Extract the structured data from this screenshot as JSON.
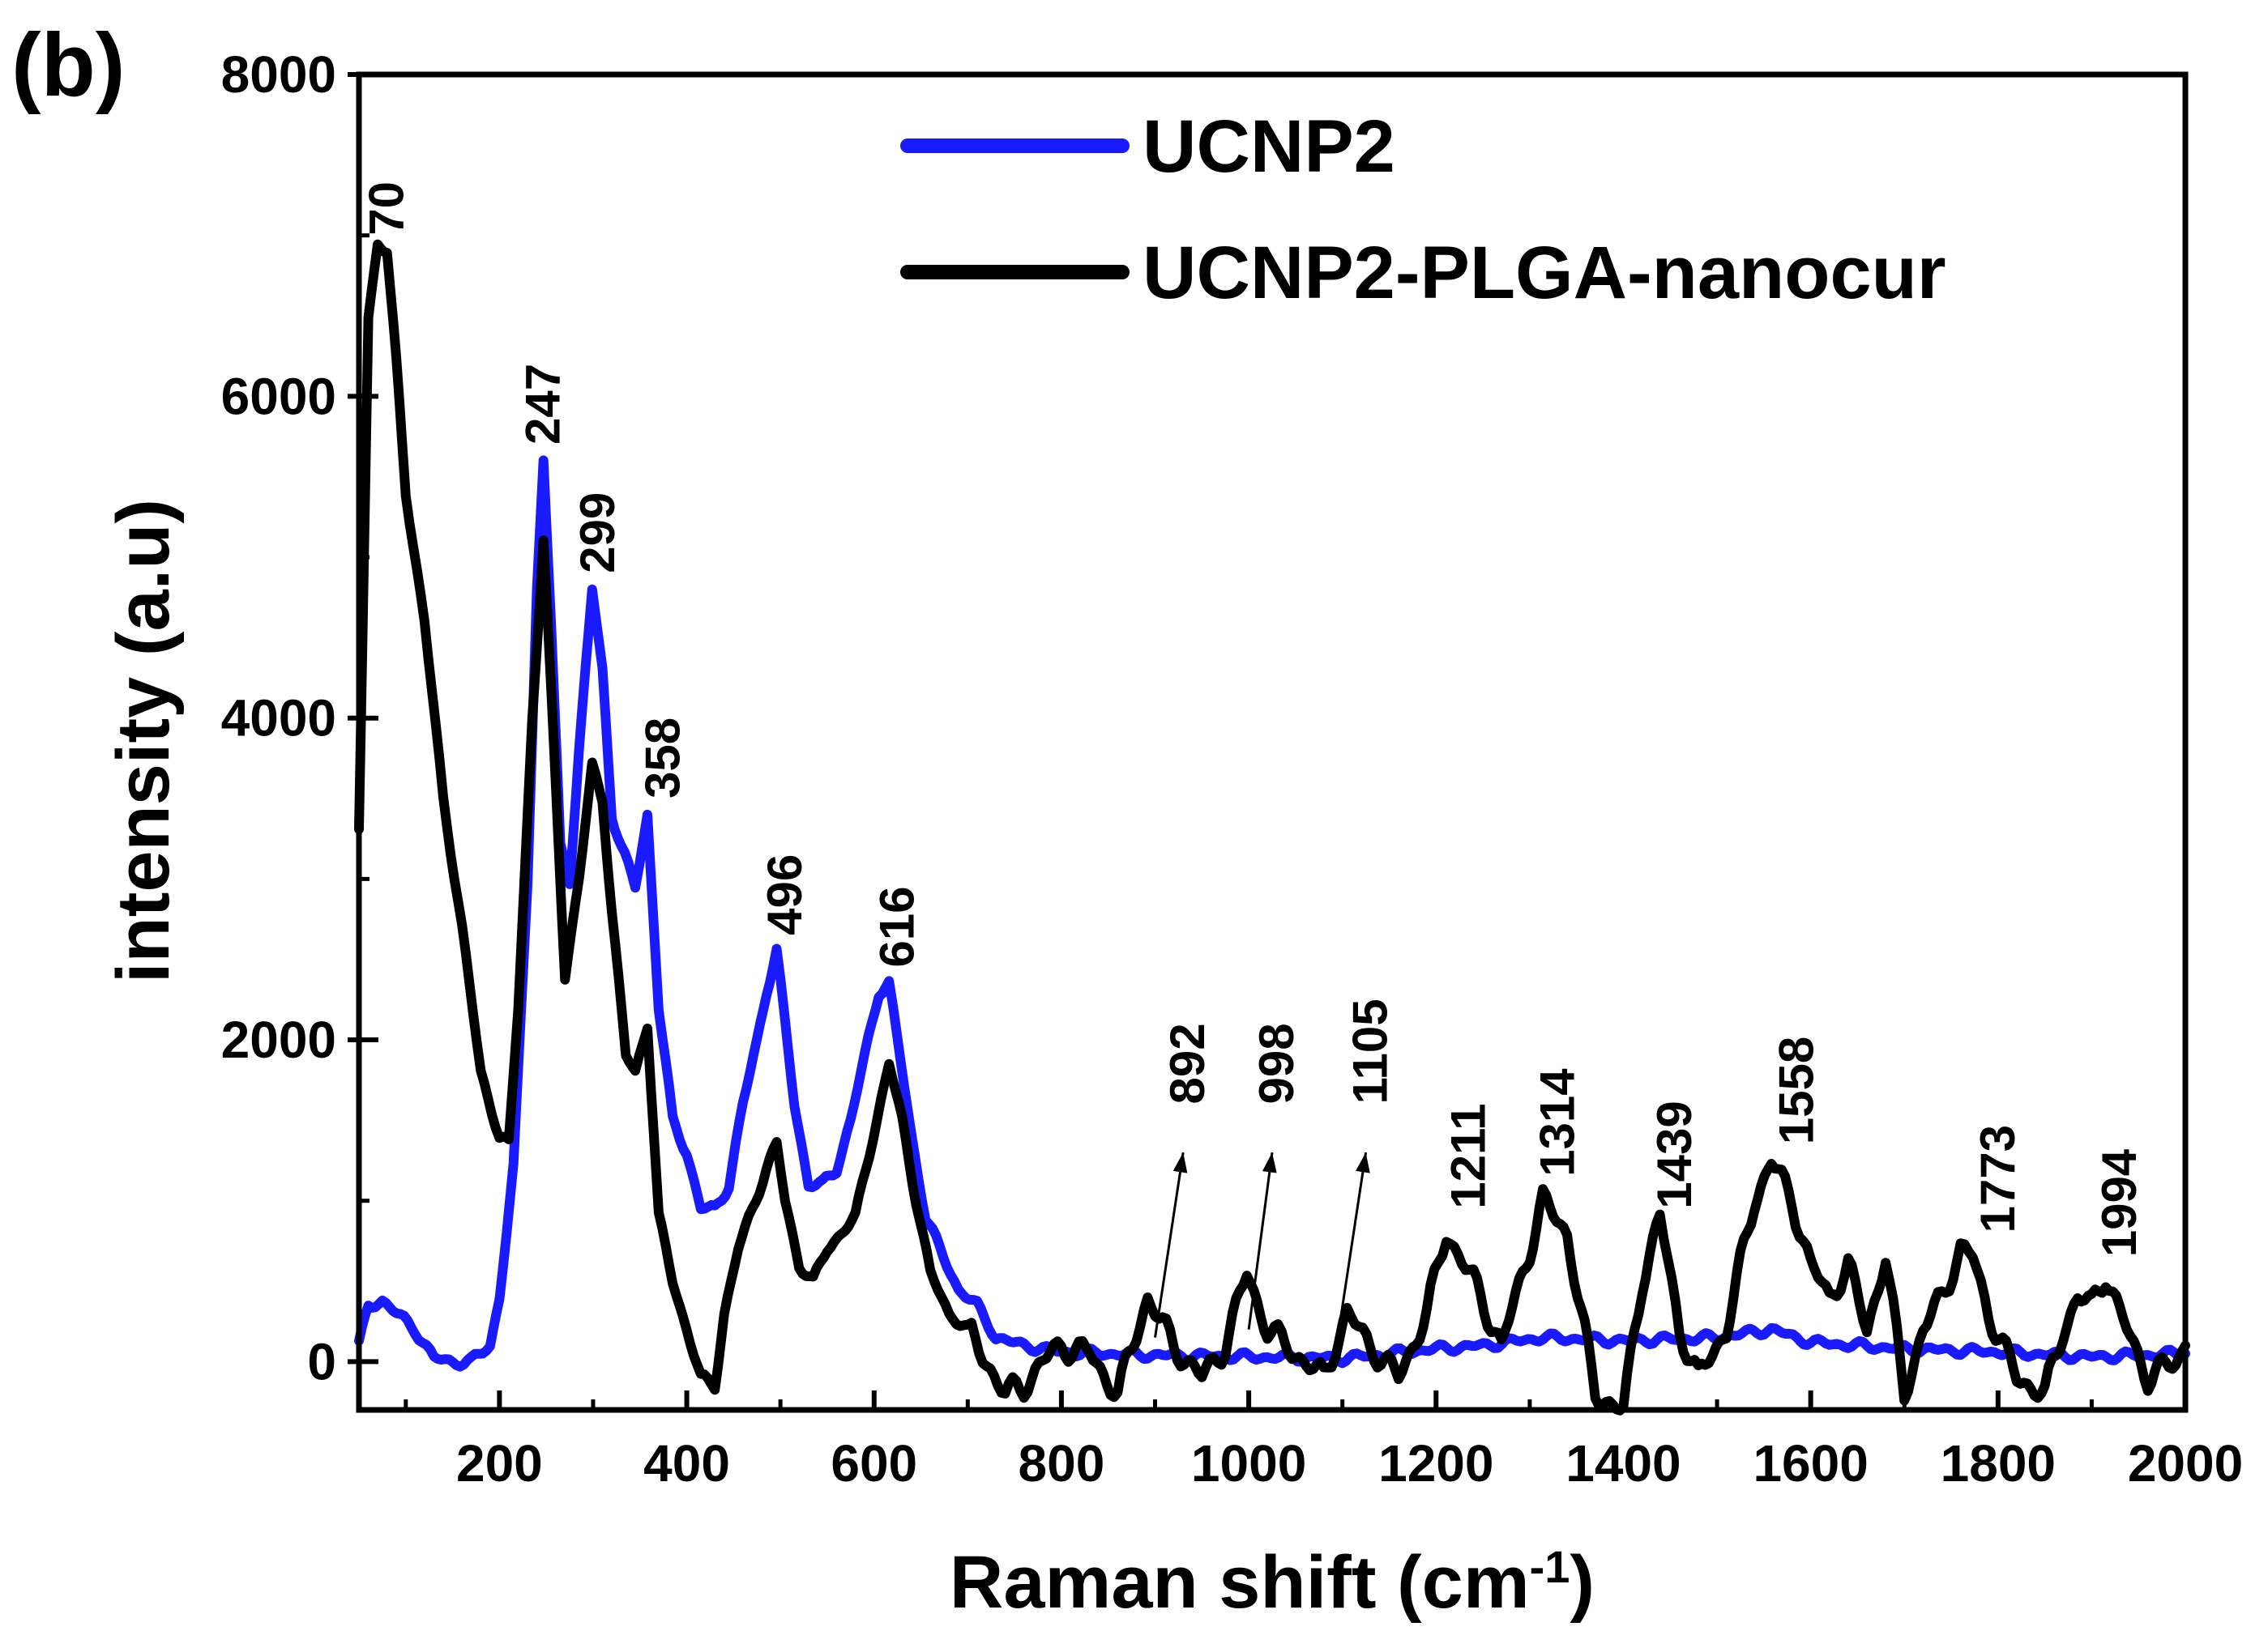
{
  "chart_data": {
    "type": "line",
    "panel_label": "(b)",
    "xlabel": "Raman shift (cm",
    "xlabel_superscript": "-1",
    "xlabel_suffix": ")",
    "ylabel": "intensity (a.u)",
    "xlim": [
      50,
      2000
    ],
    "ylim": [
      -300,
      8000
    ],
    "xticks": [
      200,
      400,
      600,
      800,
      1000,
      1200,
      1400,
      1600,
      1800,
      2000
    ],
    "xtick_labels": [
      "200",
      "400",
      "600",
      "800",
      "1000",
      "1200",
      "1400",
      "1600",
      "1800",
      "2000"
    ],
    "yticks": [
      0,
      2000,
      4000,
      6000,
      8000
    ],
    "ytick_labels": [
      "0",
      "2000",
      "4000",
      "6000",
      "8000"
    ],
    "legend_position": "top-right",
    "colors": {
      "UCNP2": "#1a1aff",
      "UCNP2-PLGA-nanocur": "#000000"
    },
    "series": [
      {
        "name": "UCNP2",
        "x": [
          50,
          60,
          75,
          90,
          110,
          130,
          150,
          170,
          190,
          200,
          215,
          230,
          240,
          247,
          255,
          265,
          275,
          285,
          299,
          310,
          320,
          330,
          345,
          358,
          370,
          385,
          400,
          415,
          430,
          445,
          460,
          475,
          485,
          496,
          505,
          515,
          530,
          545,
          560,
          575,
          590,
          605,
          616,
          625,
          640,
          655,
          670,
          690,
          710,
          730,
          760,
          800,
          900,
          1000,
          1100,
          1150,
          1200,
          1250,
          1314,
          1400,
          1500,
          1558,
          1600,
          1700,
          1800,
          1900,
          2000
        ],
        "y": [
          100,
          350,
          380,
          300,
          200,
          20,
          0,
          0,
          100,
          400,
          1200,
          3000,
          4800,
          5600,
          4600,
          3200,
          3000,
          3800,
          4800,
          4300,
          3400,
          3200,
          2950,
          3400,
          2200,
          1500,
          1300,
          950,
          950,
          1100,
          1600,
          2000,
          2300,
          2550,
          2100,
          1600,
          1100,
          1100,
          1200,
          1500,
          1900,
          2300,
          2350,
          2000,
          1400,
          900,
          700,
          450,
          350,
          150,
          100,
          60,
          40,
          30,
          20,
          50,
          80,
          100,
          150,
          130,
          150,
          200,
          120,
          80,
          60,
          30,
          50
        ]
      },
      {
        "name": "UCNP2-PLGA-nanocur",
        "x": [
          50,
          60,
          70,
          80,
          90,
          100,
          120,
          140,
          160,
          180,
          200,
          210,
          220,
          235,
          247,
          260,
          270,
          285,
          299,
          310,
          320,
          335,
          345,
          358,
          370,
          385,
          400,
          415,
          430,
          440,
          455,
          470,
          485,
          496,
          505,
          520,
          535,
          550,
          565,
          580,
          595,
          616,
          630,
          645,
          660,
          680,
          700,
          720,
          740,
          760,
          780,
          800,
          830,
          860,
          892,
          920,
          950,
          975,
          998,
          1020,
          1050,
          1080,
          1105,
          1130,
          1160,
          1190,
          1211,
          1240,
          1270,
          1300,
          1314,
          1340,
          1370,
          1400,
          1420,
          1439,
          1460,
          1480,
          1510,
          1540,
          1558,
          1580,
          1600,
          1620,
          1640,
          1660,
          1680,
          1700,
          1720,
          1740,
          1760,
          1773,
          1790,
          1820,
          1850,
          1870,
          1885,
          1900,
          1915,
          1930,
          1960,
          1990,
          2000
        ],
        "y": [
          3300,
          6500,
          6950,
          6900,
          6200,
          5400,
          4600,
          3500,
          2700,
          1800,
          1400,
          1350,
          2200,
          4000,
          5100,
          3600,
          2400,
          3000,
          3700,
          3500,
          2800,
          1900,
          1800,
          2100,
          900,
          500,
          200,
          -100,
          -150,
          300,
          700,
          950,
          1200,
          1350,
          1000,
          600,
          500,
          700,
          800,
          900,
          1300,
          1850,
          1500,
          1000,
          550,
          300,
          200,
          0,
          -200,
          -150,
          0,
          100,
          50,
          -200,
          400,
          100,
          -100,
          100,
          550,
          200,
          50,
          -100,
          300,
          100,
          -100,
          300,
          800,
          500,
          100,
          700,
          1000,
          800,
          -200,
          -300,
          500,
          900,
          200,
          -100,
          200,
          1000,
          1250,
          1000,
          600,
          400,
          600,
          200,
          650,
          -200,
          200,
          400,
          700,
          650,
          300,
          -100,
          -200,
          200,
          400,
          350,
          550,
          300,
          -100,
          0,
          100
        ]
      }
    ],
    "peak_labels": [
      {
        "text": "70",
        "x": 80,
        "y": 7000
      },
      {
        "text": "247",
        "x": 247,
        "y": 5700
      },
      {
        "text": "299",
        "x": 305,
        "y": 4900
      },
      {
        "text": "358",
        "x": 375,
        "y": 3500
      },
      {
        "text": "496",
        "x": 505,
        "y": 2650
      },
      {
        "text": "616",
        "x": 625,
        "y": 2450
      },
      {
        "text": "892",
        "x": 935,
        "y": 1600
      },
      {
        "text": "998",
        "x": 1030,
        "y": 1600
      },
      {
        "text": "1105",
        "x": 1130,
        "y": 1600
      },
      {
        "text": "1211",
        "x": 1235,
        "y": 950
      },
      {
        "text": "1314",
        "x": 1330,
        "y": 1150
      },
      {
        "text": "1439",
        "x": 1455,
        "y": 950
      },
      {
        "text": "1558",
        "x": 1585,
        "y": 1350
      },
      {
        "text": "1773",
        "x": 1800,
        "y": 800
      },
      {
        "text": "1994",
        "x": 1930,
        "y": 650
      }
    ],
    "arrows": [
      {
        "from": [
          900,
          150
        ],
        "to": [
          930,
          1300
        ]
      },
      {
        "from": [
          1000,
          200
        ],
        "to": [
          1025,
          1300
        ]
      },
      {
        "from": [
          1095,
          150
        ],
        "to": [
          1125,
          1300
        ]
      }
    ]
  }
}
